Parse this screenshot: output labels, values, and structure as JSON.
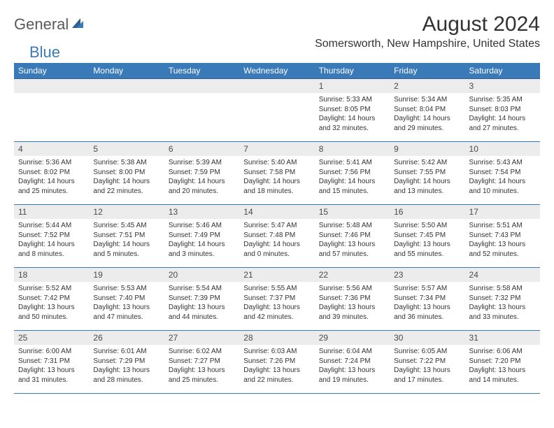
{
  "logo": {
    "gen": "General",
    "blue": "Blue"
  },
  "title": "August 2024",
  "location": "Somersworth, New Hampshire, United States",
  "colors": {
    "header_bg": "#3a7ab8",
    "header_text": "#ffffff",
    "date_bar_bg": "#ececec",
    "row_border": "#3a7ab8",
    "body_text": "#333333",
    "logo_gray": "#5a5a5a",
    "logo_blue": "#3a7ab8"
  },
  "day_names": [
    "Sunday",
    "Monday",
    "Tuesday",
    "Wednesday",
    "Thursday",
    "Friday",
    "Saturday"
  ],
  "weeks": [
    [
      {
        "date": "",
        "lines": []
      },
      {
        "date": "",
        "lines": []
      },
      {
        "date": "",
        "lines": []
      },
      {
        "date": "",
        "lines": []
      },
      {
        "date": "1",
        "lines": [
          "Sunrise: 5:33 AM",
          "Sunset: 8:05 PM",
          "Daylight: 14 hours",
          "and 32 minutes."
        ]
      },
      {
        "date": "2",
        "lines": [
          "Sunrise: 5:34 AM",
          "Sunset: 8:04 PM",
          "Daylight: 14 hours",
          "and 29 minutes."
        ]
      },
      {
        "date": "3",
        "lines": [
          "Sunrise: 5:35 AM",
          "Sunset: 8:03 PM",
          "Daylight: 14 hours",
          "and 27 minutes."
        ]
      }
    ],
    [
      {
        "date": "4",
        "lines": [
          "Sunrise: 5:36 AM",
          "Sunset: 8:02 PM",
          "Daylight: 14 hours",
          "and 25 minutes."
        ]
      },
      {
        "date": "5",
        "lines": [
          "Sunrise: 5:38 AM",
          "Sunset: 8:00 PM",
          "Daylight: 14 hours",
          "and 22 minutes."
        ]
      },
      {
        "date": "6",
        "lines": [
          "Sunrise: 5:39 AM",
          "Sunset: 7:59 PM",
          "Daylight: 14 hours",
          "and 20 minutes."
        ]
      },
      {
        "date": "7",
        "lines": [
          "Sunrise: 5:40 AM",
          "Sunset: 7:58 PM",
          "Daylight: 14 hours",
          "and 18 minutes."
        ]
      },
      {
        "date": "8",
        "lines": [
          "Sunrise: 5:41 AM",
          "Sunset: 7:56 PM",
          "Daylight: 14 hours",
          "and 15 minutes."
        ]
      },
      {
        "date": "9",
        "lines": [
          "Sunrise: 5:42 AM",
          "Sunset: 7:55 PM",
          "Daylight: 14 hours",
          "and 13 minutes."
        ]
      },
      {
        "date": "10",
        "lines": [
          "Sunrise: 5:43 AM",
          "Sunset: 7:54 PM",
          "Daylight: 14 hours",
          "and 10 minutes."
        ]
      }
    ],
    [
      {
        "date": "11",
        "lines": [
          "Sunrise: 5:44 AM",
          "Sunset: 7:52 PM",
          "Daylight: 14 hours",
          "and 8 minutes."
        ]
      },
      {
        "date": "12",
        "lines": [
          "Sunrise: 5:45 AM",
          "Sunset: 7:51 PM",
          "Daylight: 14 hours",
          "and 5 minutes."
        ]
      },
      {
        "date": "13",
        "lines": [
          "Sunrise: 5:46 AM",
          "Sunset: 7:49 PM",
          "Daylight: 14 hours",
          "and 3 minutes."
        ]
      },
      {
        "date": "14",
        "lines": [
          "Sunrise: 5:47 AM",
          "Sunset: 7:48 PM",
          "Daylight: 14 hours",
          "and 0 minutes."
        ]
      },
      {
        "date": "15",
        "lines": [
          "Sunrise: 5:48 AM",
          "Sunset: 7:46 PM",
          "Daylight: 13 hours",
          "and 57 minutes."
        ]
      },
      {
        "date": "16",
        "lines": [
          "Sunrise: 5:50 AM",
          "Sunset: 7:45 PM",
          "Daylight: 13 hours",
          "and 55 minutes."
        ]
      },
      {
        "date": "17",
        "lines": [
          "Sunrise: 5:51 AM",
          "Sunset: 7:43 PM",
          "Daylight: 13 hours",
          "and 52 minutes."
        ]
      }
    ],
    [
      {
        "date": "18",
        "lines": [
          "Sunrise: 5:52 AM",
          "Sunset: 7:42 PM",
          "Daylight: 13 hours",
          "and 50 minutes."
        ]
      },
      {
        "date": "19",
        "lines": [
          "Sunrise: 5:53 AM",
          "Sunset: 7:40 PM",
          "Daylight: 13 hours",
          "and 47 minutes."
        ]
      },
      {
        "date": "20",
        "lines": [
          "Sunrise: 5:54 AM",
          "Sunset: 7:39 PM",
          "Daylight: 13 hours",
          "and 44 minutes."
        ]
      },
      {
        "date": "21",
        "lines": [
          "Sunrise: 5:55 AM",
          "Sunset: 7:37 PM",
          "Daylight: 13 hours",
          "and 42 minutes."
        ]
      },
      {
        "date": "22",
        "lines": [
          "Sunrise: 5:56 AM",
          "Sunset: 7:36 PM",
          "Daylight: 13 hours",
          "and 39 minutes."
        ]
      },
      {
        "date": "23",
        "lines": [
          "Sunrise: 5:57 AM",
          "Sunset: 7:34 PM",
          "Daylight: 13 hours",
          "and 36 minutes."
        ]
      },
      {
        "date": "24",
        "lines": [
          "Sunrise: 5:58 AM",
          "Sunset: 7:32 PM",
          "Daylight: 13 hours",
          "and 33 minutes."
        ]
      }
    ],
    [
      {
        "date": "25",
        "lines": [
          "Sunrise: 6:00 AM",
          "Sunset: 7:31 PM",
          "Daylight: 13 hours",
          "and 31 minutes."
        ]
      },
      {
        "date": "26",
        "lines": [
          "Sunrise: 6:01 AM",
          "Sunset: 7:29 PM",
          "Daylight: 13 hours",
          "and 28 minutes."
        ]
      },
      {
        "date": "27",
        "lines": [
          "Sunrise: 6:02 AM",
          "Sunset: 7:27 PM",
          "Daylight: 13 hours",
          "and 25 minutes."
        ]
      },
      {
        "date": "28",
        "lines": [
          "Sunrise: 6:03 AM",
          "Sunset: 7:26 PM",
          "Daylight: 13 hours",
          "and 22 minutes."
        ]
      },
      {
        "date": "29",
        "lines": [
          "Sunrise: 6:04 AM",
          "Sunset: 7:24 PM",
          "Daylight: 13 hours",
          "and 19 minutes."
        ]
      },
      {
        "date": "30",
        "lines": [
          "Sunrise: 6:05 AM",
          "Sunset: 7:22 PM",
          "Daylight: 13 hours",
          "and 17 minutes."
        ]
      },
      {
        "date": "31",
        "lines": [
          "Sunrise: 6:06 AM",
          "Sunset: 7:20 PM",
          "Daylight: 13 hours",
          "and 14 minutes."
        ]
      }
    ]
  ]
}
